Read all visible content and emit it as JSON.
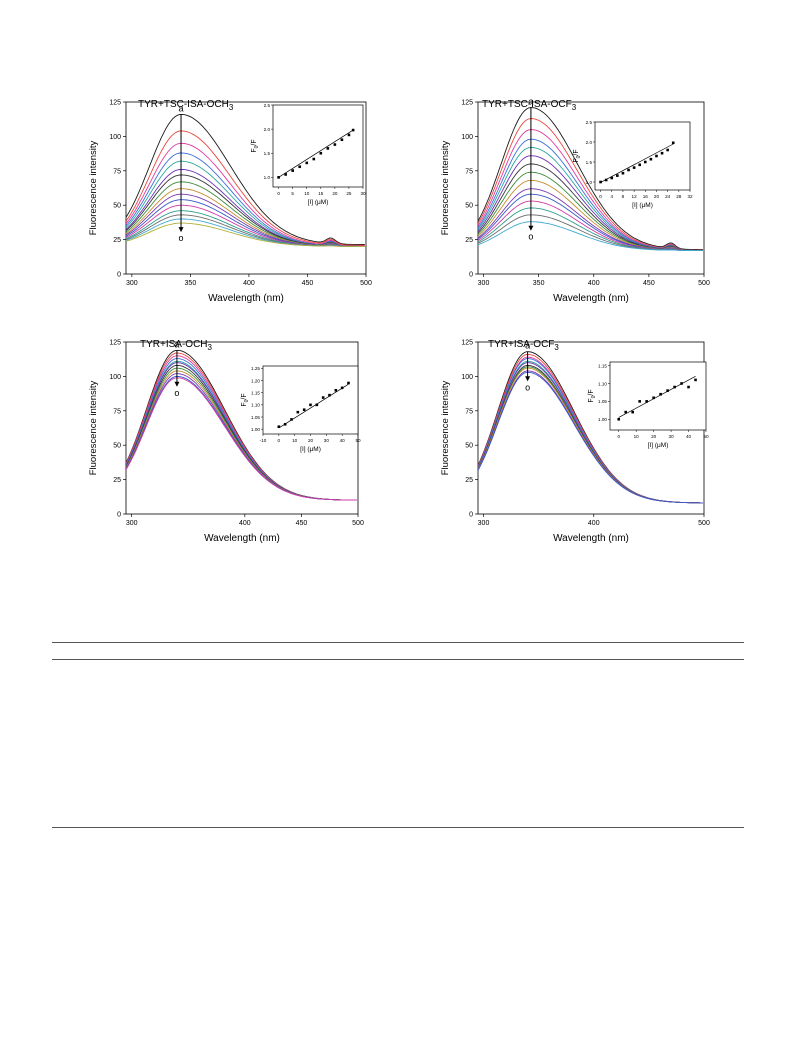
{
  "chart_data": [
    {
      "type": "line",
      "title": "TYR+TSC-ISA-OCH3",
      "title_main": "TYR+TSC-ISA-OCH",
      "title_sub": "3",
      "xlabel": "Wavelength (nm)",
      "ylabel": "Fluorescence intensity",
      "xlim": [
        295,
        500
      ],
      "ylim": [
        0,
        125
      ],
      "xticks": [
        "300",
        "350",
        "400",
        "450",
        "500"
      ],
      "yticks": [
        "0",
        "25",
        "50",
        "75",
        "100",
        "125"
      ],
      "arrow_top": "a",
      "arrow_bottom": "o",
      "peak_x": 342,
      "peaks": [
        116,
        104,
        95,
        88,
        82,
        76,
        72,
        67,
        62,
        58,
        54,
        50,
        46,
        43,
        40,
        37
      ],
      "start_y": 20,
      "tail_y": 13,
      "inset": {
        "type": "scatter",
        "xlabel": "[I] (μM)",
        "ylabel": "F0/F",
        "ylabel_main": "F",
        "ylabel_sub": "0",
        "ylabel_tail": "/F",
        "xlim": [
          -2,
          30
        ],
        "ylim": [
          0.8,
          2.5
        ],
        "xticks": [
          "0",
          "5",
          "10",
          "15",
          "20",
          "25",
          "30"
        ],
        "yticks": [
          "1.0",
          "1.5",
          "2.0",
          "2.5"
        ],
        "x": [
          0,
          2.5,
          5,
          7.5,
          10,
          12.5,
          15,
          17.5,
          20,
          22.5,
          25,
          26.5
        ],
        "y": [
          1.0,
          1.06,
          1.14,
          1.22,
          1.3,
          1.38,
          1.5,
          1.6,
          1.68,
          1.78,
          1.88,
          1.98
        ],
        "fit": [
          [
            0,
            1.0
          ],
          [
            26.5,
            1.98
          ]
        ]
      }
    },
    {
      "type": "line",
      "title": "TYR+TSC-ISA-OCF3",
      "title_main": "TYR+TSC-ISA-OCF",
      "title_sub": "3",
      "xlabel": "Wavelength (nm)",
      "ylabel": "Fluorescence intensity",
      "xlim": [
        295,
        500
      ],
      "ylim": [
        0,
        125
      ],
      "xticks": [
        "300",
        "350",
        "400",
        "450",
        "500"
      ],
      "yticks": [
        "0",
        "25",
        "50",
        "75",
        "100",
        "125"
      ],
      "arrow_top": "a",
      "arrow_bottom": "o",
      "peak_x": 343,
      "peaks": [
        121,
        113,
        105,
        98,
        92,
        86,
        80,
        74,
        68,
        62,
        58,
        53,
        48,
        43,
        38
      ],
      "start_y": 17,
      "tail_y": 11,
      "inset": {
        "type": "scatter",
        "xlabel": "[I] (μM)",
        "ylabel": "F0/F",
        "ylabel_main": "F",
        "ylabel_sub": "0",
        "ylabel_tail": "/F",
        "xlim": [
          -2,
          32
        ],
        "ylim": [
          0.8,
          2.5
        ],
        "xticks": [
          "0",
          "4",
          "8",
          "12",
          "16",
          "20",
          "24",
          "28",
          "32"
        ],
        "yticks": [
          "1.0",
          "1.5",
          "2.0",
          "2.5"
        ],
        "x": [
          0,
          2,
          4,
          6,
          8,
          10,
          12,
          14,
          16,
          18,
          20,
          22,
          24,
          26
        ],
        "y": [
          1.0,
          1.05,
          1.1,
          1.16,
          1.22,
          1.3,
          1.36,
          1.43,
          1.5,
          1.57,
          1.65,
          1.72,
          1.8,
          1.98
        ],
        "fit": [
          [
            0,
            0.99
          ],
          [
            26,
            1.95
          ]
        ]
      }
    },
    {
      "type": "line",
      "title": "TYR+ISA-OCH3",
      "title_main": "TYR+ISA-OCH",
      "title_sub": "3",
      "xlabel": "Wavelength (nm)",
      "ylabel": "Fluorescence intensity",
      "xlim": [
        295,
        500
      ],
      "ylim": [
        0,
        125
      ],
      "xticks": [
        "300",
        "400",
        "450",
        "500"
      ],
      "yticks": [
        "0",
        "25",
        "50",
        "75",
        "100",
        "125"
      ],
      "arrow_top": "a",
      "arrow_bottom": "o",
      "peak_x": 340,
      "peaks": [
        119,
        117,
        115,
        113,
        111,
        110,
        108,
        106,
        104,
        102,
        100,
        99
      ],
      "start_y": 10,
      "tail_y": 5,
      "inset": {
        "type": "scatter",
        "xlabel": "[I] (μM)",
        "ylabel": "F0/F",
        "ylabel_main": "F",
        "ylabel_sub": "0",
        "ylabel_tail": "/F",
        "xlim": [
          -10,
          50
        ],
        "ylim": [
          0.98,
          1.26
        ],
        "xticks": [
          "-10",
          "0",
          "10",
          "20",
          "30",
          "40",
          "50"
        ],
        "yticks": [
          "1.00",
          "1.05",
          "1.10",
          "1.15",
          "1.20",
          "1.25"
        ],
        "x": [
          0,
          4,
          8,
          12,
          16,
          20,
          24,
          28,
          32,
          36,
          40,
          44
        ],
        "y": [
          1.01,
          1.02,
          1.04,
          1.07,
          1.08,
          1.1,
          1.1,
          1.13,
          1.14,
          1.16,
          1.17,
          1.19
        ],
        "fit": [
          [
            0,
            1.005
          ],
          [
            44,
            1.185
          ]
        ]
      }
    },
    {
      "type": "line",
      "title": "TYR+ISA-OCF3",
      "title_main": "TYR+ISA-OCF",
      "title_sub": "3",
      "xlabel": "Wavelength (nm)",
      "ylabel": "Fluorescence intensity",
      "xlim": [
        295,
        500
      ],
      "ylim": [
        0,
        125
      ],
      "xticks": [
        "300",
        "400",
        "500"
      ],
      "yticks": [
        "0",
        "25",
        "50",
        "75",
        "100",
        "125"
      ],
      "arrow_top": "a",
      "arrow_bottom": "o",
      "peak_x": 340,
      "peaks": [
        118,
        116,
        114,
        113,
        111,
        110,
        108,
        107,
        106,
        104,
        103
      ],
      "start_y": 8,
      "tail_y": 4,
      "inset": {
        "type": "scatter",
        "xlabel": "[I] (μM)",
        "ylabel": "F0/F",
        "ylabel_main": "F",
        "ylabel_sub": "0",
        "ylabel_tail": "/F",
        "xlim": [
          -5,
          50
        ],
        "ylim": [
          0.97,
          1.16
        ],
        "xticks": [
          "0",
          "10",
          "20",
          "30",
          "40",
          "50"
        ],
        "yticks": [
          "1.00",
          "1.05",
          "1.10",
          "1.15"
        ],
        "x": [
          0,
          4,
          8,
          12,
          16,
          20,
          24,
          28,
          32,
          36,
          40,
          44
        ],
        "y": [
          1.0,
          1.02,
          1.02,
          1.05,
          1.05,
          1.06,
          1.07,
          1.08,
          1.09,
          1.1,
          1.09,
          1.11
        ],
        "fit": [
          [
            0,
            1.005
          ],
          [
            44,
            1.12
          ]
        ]
      }
    }
  ],
  "colors": [
    "#1a1a1a",
    "#e8473c",
    "#e03aa0",
    "#3a6fd8",
    "#2aa7a0",
    "#6f2fb8",
    "#34343c",
    "#3c8c3a",
    "#c68f2f",
    "#7a3ab4",
    "#3a57c8",
    "#d23aa6",
    "#2e9e8a",
    "#6d6d6d",
    "#3fa9d0",
    "#b0b03a",
    "#9a3a3a"
  ]
}
